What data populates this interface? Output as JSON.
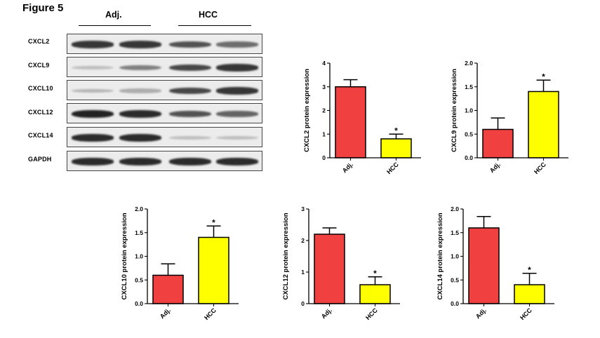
{
  "figure": {
    "label": "Figure 5"
  },
  "western_blot": {
    "groups": [
      {
        "label": "Adj."
      },
      {
        "label": "HCC"
      }
    ],
    "rows": [
      {
        "label": "CXCL2",
        "intensities": [
          0.85,
          0.85,
          0.7,
          0.55
        ]
      },
      {
        "label": "CXCL9",
        "intensities": [
          0.1,
          0.45,
          0.75,
          0.85
        ]
      },
      {
        "label": "CXCL10",
        "intensities": [
          0.15,
          0.2,
          0.75,
          0.85
        ]
      },
      {
        "label": "CXCL12",
        "intensities": [
          0.95,
          0.9,
          0.7,
          0.6
        ]
      },
      {
        "label": "CXCL14",
        "intensities": [
          0.9,
          0.9,
          0.1,
          0.1
        ]
      },
      {
        "label": "GAPDH",
        "intensities": [
          0.9,
          0.9,
          0.9,
          0.9
        ]
      }
    ]
  },
  "colors": {
    "adj": "#f04040",
    "hcc": "#ffff00",
    "band": "#141414"
  },
  "chart_data": [
    {
      "type": "bar",
      "categories": [
        "Adj.",
        "HCC"
      ],
      "values": [
        3.0,
        0.8
      ],
      "errors": [
        0.3,
        0.2
      ],
      "ylabel": "CXCL2 protein expression",
      "ylim": [
        0,
        4
      ],
      "yticks": [
        0,
        1,
        2,
        3,
        4
      ],
      "ytick_labels": [
        "0",
        "1",
        "2",
        "3",
        "4"
      ],
      "significance": [
        "",
        "*"
      ]
    },
    {
      "type": "bar",
      "categories": [
        "Adj.",
        "HCC"
      ],
      "values": [
        0.6,
        1.4
      ],
      "errors": [
        0.24,
        0.24
      ],
      "ylabel": "CXCL9 protein expression",
      "ylim": [
        0,
        2.0
      ],
      "yticks": [
        0,
        0.5,
        1.0,
        1.5,
        2.0
      ],
      "ytick_labels": [
        "0.0",
        "0.5",
        "1.0",
        "1.5",
        "2.0"
      ],
      "significance": [
        "",
        "*"
      ]
    },
    {
      "type": "bar",
      "categories": [
        "Adj.",
        "HCC"
      ],
      "values": [
        0.6,
        1.4
      ],
      "errors": [
        0.24,
        0.24
      ],
      "ylabel": "CXCL10 protein expression",
      "ylim": [
        0,
        2.0
      ],
      "yticks": [
        0,
        0.5,
        1.0,
        1.5,
        2.0
      ],
      "ytick_labels": [
        "0.0",
        "0.5",
        "1.0",
        "1.5",
        "2.0"
      ],
      "significance": [
        "",
        "*"
      ]
    },
    {
      "type": "bar",
      "categories": [
        "Adj.",
        "HCC"
      ],
      "values": [
        2.2,
        0.6
      ],
      "errors": [
        0.2,
        0.25
      ],
      "ylabel": "CXCL12 protein expression",
      "ylim": [
        0,
        3
      ],
      "yticks": [
        0,
        1,
        2,
        3
      ],
      "ytick_labels": [
        "0",
        "1",
        "2",
        "3"
      ],
      "significance": [
        "",
        "*"
      ]
    },
    {
      "type": "bar",
      "categories": [
        "Adj.",
        "HCC"
      ],
      "values": [
        1.6,
        0.4
      ],
      "errors": [
        0.24,
        0.24
      ],
      "ylabel": "CXCL14 protein expression",
      "ylim": [
        0,
        2.0
      ],
      "yticks": [
        0,
        0.5,
        1.0,
        1.5,
        2.0
      ],
      "ytick_labels": [
        "0.0",
        "0.5",
        "1.0",
        "1.5",
        "2.0"
      ],
      "significance": [
        "",
        "*"
      ]
    }
  ]
}
